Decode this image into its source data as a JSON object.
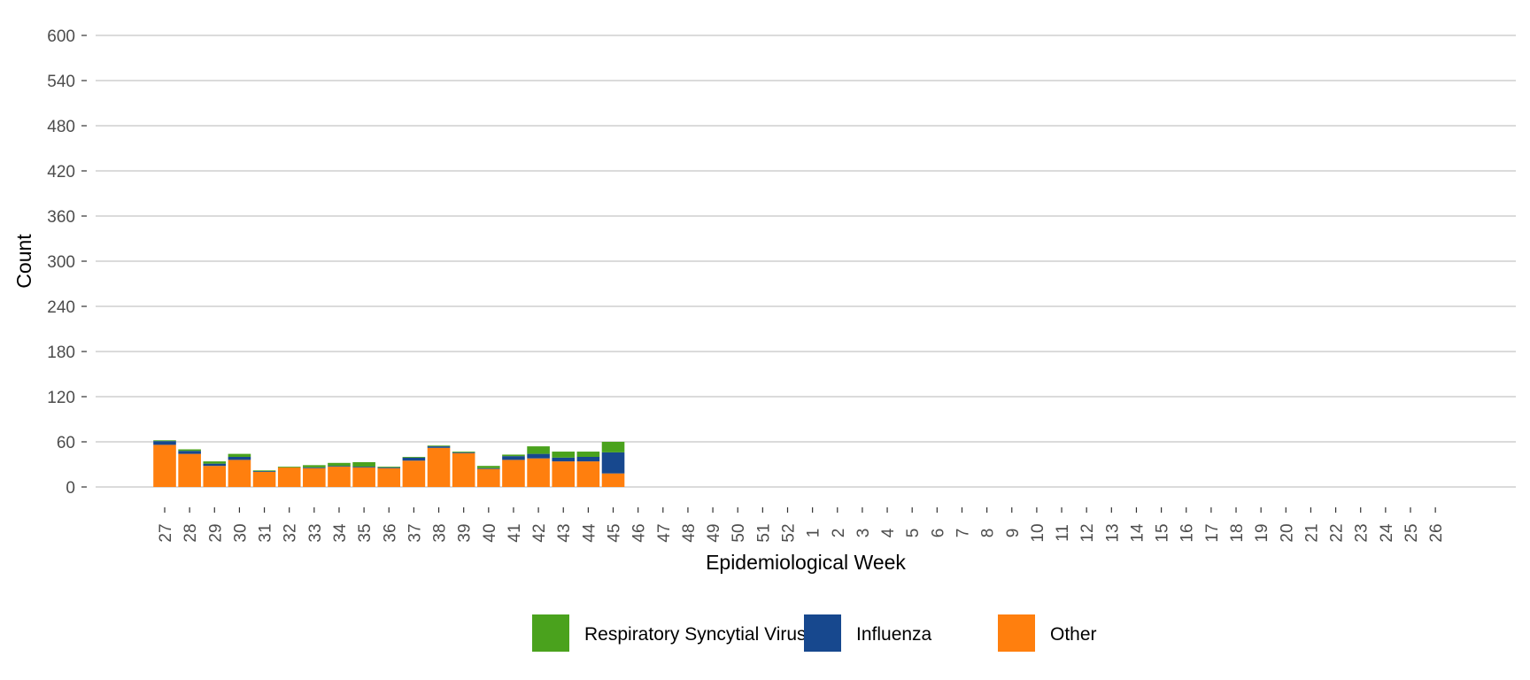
{
  "chart_data": {
    "type": "bar",
    "stacked": true,
    "title": "",
    "xlabel": "Epidemiological Week",
    "ylabel": "Count",
    "ylim": [
      0,
      600
    ],
    "yticks": [
      0,
      60,
      120,
      180,
      240,
      300,
      360,
      420,
      480,
      540,
      600
    ],
    "grid": "horizontal",
    "legend_position": "bottom",
    "categories": [
      "27",
      "28",
      "29",
      "30",
      "31",
      "32",
      "33",
      "34",
      "35",
      "36",
      "37",
      "38",
      "39",
      "40",
      "41",
      "42",
      "43",
      "44",
      "45",
      "46",
      "47",
      "48",
      "49",
      "50",
      "51",
      "52",
      "1",
      "2",
      "3",
      "4",
      "5",
      "6",
      "7",
      "8",
      "9",
      "10",
      "11",
      "12",
      "13",
      "14",
      "15",
      "16",
      "17",
      "18",
      "19",
      "20",
      "21",
      "22",
      "23",
      "24",
      "25",
      "26"
    ],
    "series": [
      {
        "name": "Other",
        "color": "#ff7f0e",
        "values": [
          56,
          44,
          28,
          36,
          20,
          26,
          25,
          27,
          26,
          25,
          35,
          52,
          45,
          24,
          36,
          38,
          34,
          34,
          18,
          0,
          0,
          0,
          0,
          0,
          0,
          0,
          0,
          0,
          0,
          0,
          0,
          0,
          0,
          0,
          0,
          0,
          0,
          0,
          0,
          0,
          0,
          0,
          0,
          0,
          0,
          0,
          0,
          0,
          0,
          0,
          0,
          0
        ]
      },
      {
        "name": "Influenza",
        "color": "#17488e",
        "values": [
          5,
          4,
          3,
          4,
          1,
          0,
          1,
          1,
          1,
          1,
          4,
          2,
          1,
          1,
          5,
          6,
          5,
          6,
          28,
          0,
          0,
          0,
          0,
          0,
          0,
          0,
          0,
          0,
          0,
          0,
          0,
          0,
          0,
          0,
          0,
          0,
          0,
          0,
          0,
          0,
          0,
          0,
          0,
          0,
          0,
          0,
          0,
          0,
          0,
          0,
          0,
          0
        ]
      },
      {
        "name": "Respiratory Syncytial Virus",
        "color": "#4aa21d",
        "values": [
          1,
          2,
          3,
          4,
          1,
          1,
          3,
          4,
          6,
          1,
          1,
          1,
          1,
          3,
          2,
          10,
          8,
          7,
          14,
          0,
          0,
          0,
          0,
          0,
          0,
          0,
          0,
          0,
          0,
          0,
          0,
          0,
          0,
          0,
          0,
          0,
          0,
          0,
          0,
          0,
          0,
          0,
          0,
          0,
          0,
          0,
          0,
          0,
          0,
          0,
          0,
          0
        ]
      }
    ],
    "legend": [
      {
        "label": "Respiratory Syncytial Virus",
        "color": "#4aa21d"
      },
      {
        "label": "Influenza",
        "color": "#17488e"
      },
      {
        "label": "Other",
        "color": "#ff7f0e"
      }
    ]
  }
}
